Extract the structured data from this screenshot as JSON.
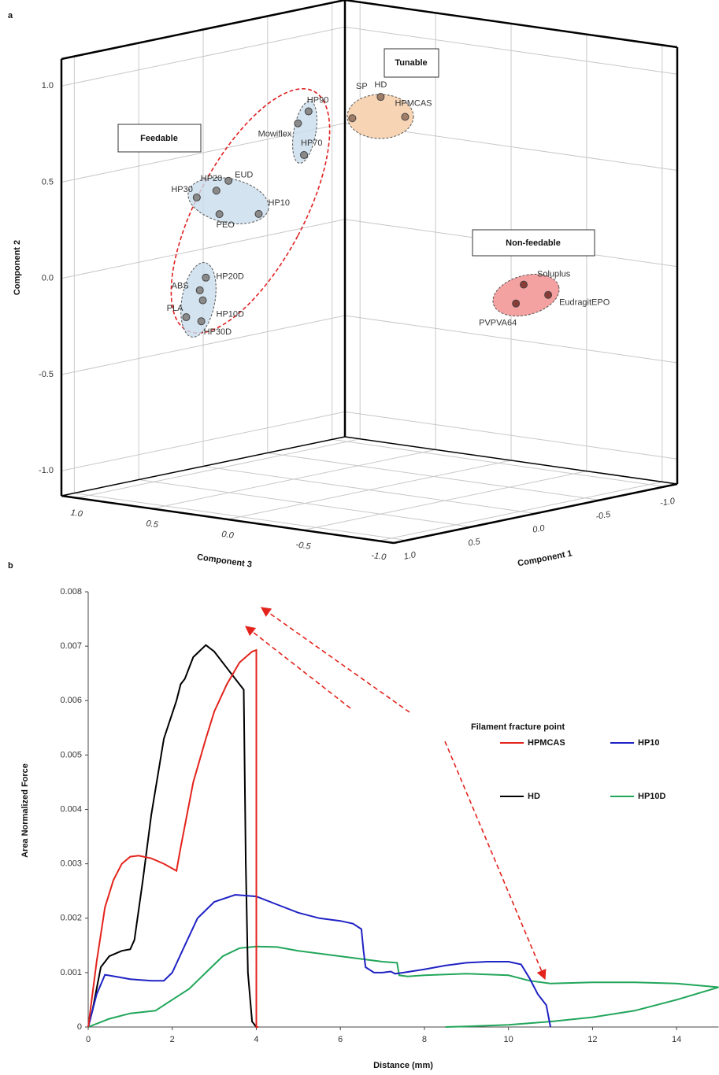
{
  "chart_data": [
    {
      "type": "scatter3d",
      "panel_label": "a",
      "x_label": "Component 1",
      "y_label": "Component 2",
      "z_label": "Component 3",
      "xlim": [
        -1.1,
        1.1
      ],
      "xticks": [
        {
          "value": 1,
          "label": "1.0"
        },
        0.5,
        {
          "value": 0,
          "label": "0.0"
        },
        -0.5,
        {
          "value": -1,
          "label": "-1.0"
        }
      ],
      "ylim": [
        -1.13,
        1.14
      ],
      "yticks": [
        {
          "value": -1,
          "label": "-1.0"
        },
        -0.5,
        {
          "value": 0,
          "label": "0.0"
        },
        0.5,
        {
          "value": 1,
          "label": "1.0"
        }
      ],
      "zlim": [
        -1.1,
        1.1
      ],
      "zticks": [
        {
          "value": 1,
          "label": "1.0"
        },
        0.5,
        {
          "value": 0,
          "label": "0.0"
        },
        -0.5,
        {
          "value": -1,
          "label": "-1.0"
        }
      ],
      "grid": true,
      "series": [
        {
          "name": "Feedable",
          "color": "#8a8a8a",
          "labels": [
            "HP90",
            "Mowiflex",
            "HP70",
            "HP30",
            "HP20",
            "EUD",
            "HP10",
            "PEO",
            "HP20D",
            "ABS",
            "HP10D",
            "PLA",
            "HP30D"
          ],
          "x": [
            0.8,
            0.8,
            0.8,
            0.8,
            0.8,
            0.8,
            0.8,
            0.8,
            0.8,
            0.8,
            0.8,
            0.8,
            0.8
          ],
          "y": [
            0.98,
            0.91,
            0.75,
            0.45,
            0.5,
            0.56,
            0.41,
            0.38,
            0.04,
            -0.03,
            -0.08,
            -0.18,
            -0.19
          ],
          "z": [
            -0.28,
            -0.21,
            -0.25,
            0.46,
            0.33,
            0.25,
            0.05,
            0.31,
            0.4,
            0.44,
            0.42,
            0.53,
            0.43
          ]
        },
        {
          "name": "Tunable",
          "color": "#a07d66",
          "labels": [
            "HD",
            "SP",
            "HPMCAS"
          ],
          "x": [
            0.85,
            1.07,
            0.66
          ],
          "y": [
            1.12,
            1.04,
            0.99
          ],
          "z": [
            -0.8,
            -0.8,
            -0.8
          ]
        },
        {
          "name": "Non-feedable",
          "color": "#8a3b36",
          "labels": [
            "Soluplus",
            "EudragitEPO",
            "PVPVA64"
          ],
          "x": [
            -0.26,
            -0.45,
            -0.2
          ],
          "y": [
            -0.01,
            -0.09,
            -0.1
          ],
          "z": [
            -0.8,
            -0.8,
            -0.8
          ]
        }
      ]
    },
    {
      "type": "line",
      "panel_label": "b",
      "x_label": "Distance (mm)",
      "y_label": "Area Normalized Force",
      "annotation": "Filament fracture point",
      "xlim": [
        0,
        15
      ],
      "xticks": [
        0,
        2,
        4,
        6,
        8,
        10,
        12,
        14
      ],
      "ylim": [
        0,
        0.008
      ],
      "yticks": [
        0,
        0.001,
        0.002,
        0.003,
        0.004,
        0.005,
        0.006,
        0.007,
        0.008
      ],
      "series": [
        {
          "name": "HPMCAS",
          "color": "#e3231c",
          "x": [
            0,
            0.2,
            0.4,
            0.6,
            0.8,
            1.0,
            1.2,
            1.5,
            1.8,
            2.1,
            2.2,
            2.5,
            2.8,
            3.0,
            3.3,
            3.6,
            3.9,
            4.0,
            4.0,
            4.05
          ],
          "values": [
            0,
            0.0012,
            0.0022,
            0.0027,
            0.003,
            0.00313,
            0.00315,
            0.0031,
            0.003,
            0.00287,
            0.0033,
            0.0045,
            0.0053,
            0.0058,
            0.0063,
            0.0067,
            0.0069,
            0.00693,
            0,
            0
          ]
        },
        {
          "name": "HP10",
          "color": "#1f22c4",
          "x": [
            0,
            0.2,
            0.4,
            0.7,
            1.0,
            1.5,
            1.8,
            2.0,
            2.3,
            2.6,
            3.0,
            3.5,
            4.0,
            4.5,
            5.0,
            5.5,
            6.0,
            6.3,
            6.5,
            6.55,
            6.6,
            6.8,
            7.0,
            7.2,
            7.3,
            7.5,
            8.0,
            8.5,
            9.0,
            9.5,
            10.0,
            10.3,
            10.5,
            10.7,
            10.8,
            10.9,
            11.0
          ],
          "values": [
            0,
            0.0006,
            0.00096,
            0.00092,
            0.00088,
            0.00085,
            0.00085,
            0.001,
            0.0015,
            0.002,
            0.0023,
            0.00243,
            0.0024,
            0.00225,
            0.0021,
            0.002,
            0.00195,
            0.0019,
            0.0018,
            0.0014,
            0.0011,
            0.001,
            0.001,
            0.00102,
            0.00098,
            0.001,
            0.00106,
            0.00113,
            0.00118,
            0.0012,
            0.0012,
            0.00115,
            0.0009,
            0.0006,
            0.0005,
            0.0004,
            0
          ]
        },
        {
          "name": "HD",
          "color": "#000000",
          "x": [
            0,
            0.1,
            0.3,
            0.5,
            0.8,
            1.0,
            1.1,
            1.3,
            1.5,
            1.8,
            2.1,
            2.2,
            2.3,
            2.5,
            2.8,
            3.0,
            3.3,
            3.6,
            3.7,
            3.75,
            3.8,
            3.9,
            4.0
          ],
          "values": [
            0,
            0.0003,
            0.0011,
            0.0013,
            0.0014,
            0.00143,
            0.0016,
            0.0027,
            0.0039,
            0.0053,
            0.006,
            0.0063,
            0.0064,
            0.0068,
            0.00702,
            0.0069,
            0.0066,
            0.0063,
            0.0062,
            0.003,
            0.001,
            0.0001,
            0
          ]
        },
        {
          "name": "HP10D",
          "color": "#21a65a",
          "x": [
            0,
            0.5,
            1.0,
            1.6,
            2.0,
            2.4,
            2.8,
            3.2,
            3.6,
            4.0,
            4.5,
            5.0,
            6.0,
            7.0,
            7.35,
            7.4,
            7.6,
            8.0,
            9.0,
            10.0,
            10.5,
            11.0,
            12.0,
            13.0,
            14.0,
            15.0,
            14.0,
            13.0,
            12.0,
            11.0,
            10.0,
            9.0,
            8.5
          ],
          "values": [
            0,
            0.00015,
            0.00025,
            0.0003,
            0.0005,
            0.0007,
            0.001,
            0.0013,
            0.00145,
            0.00148,
            0.00147,
            0.0014,
            0.0013,
            0.0012,
            0.00118,
            0.00095,
            0.00093,
            0.00095,
            0.00098,
            0.00095,
            0.00085,
            0.0008,
            0.00082,
            0.00082,
            0.0008,
            0.00073,
            0.0005,
            0.0003,
            0.00018,
            0.0001,
            4e-05,
            1e-05,
            0
          ]
        }
      ]
    }
  ]
}
